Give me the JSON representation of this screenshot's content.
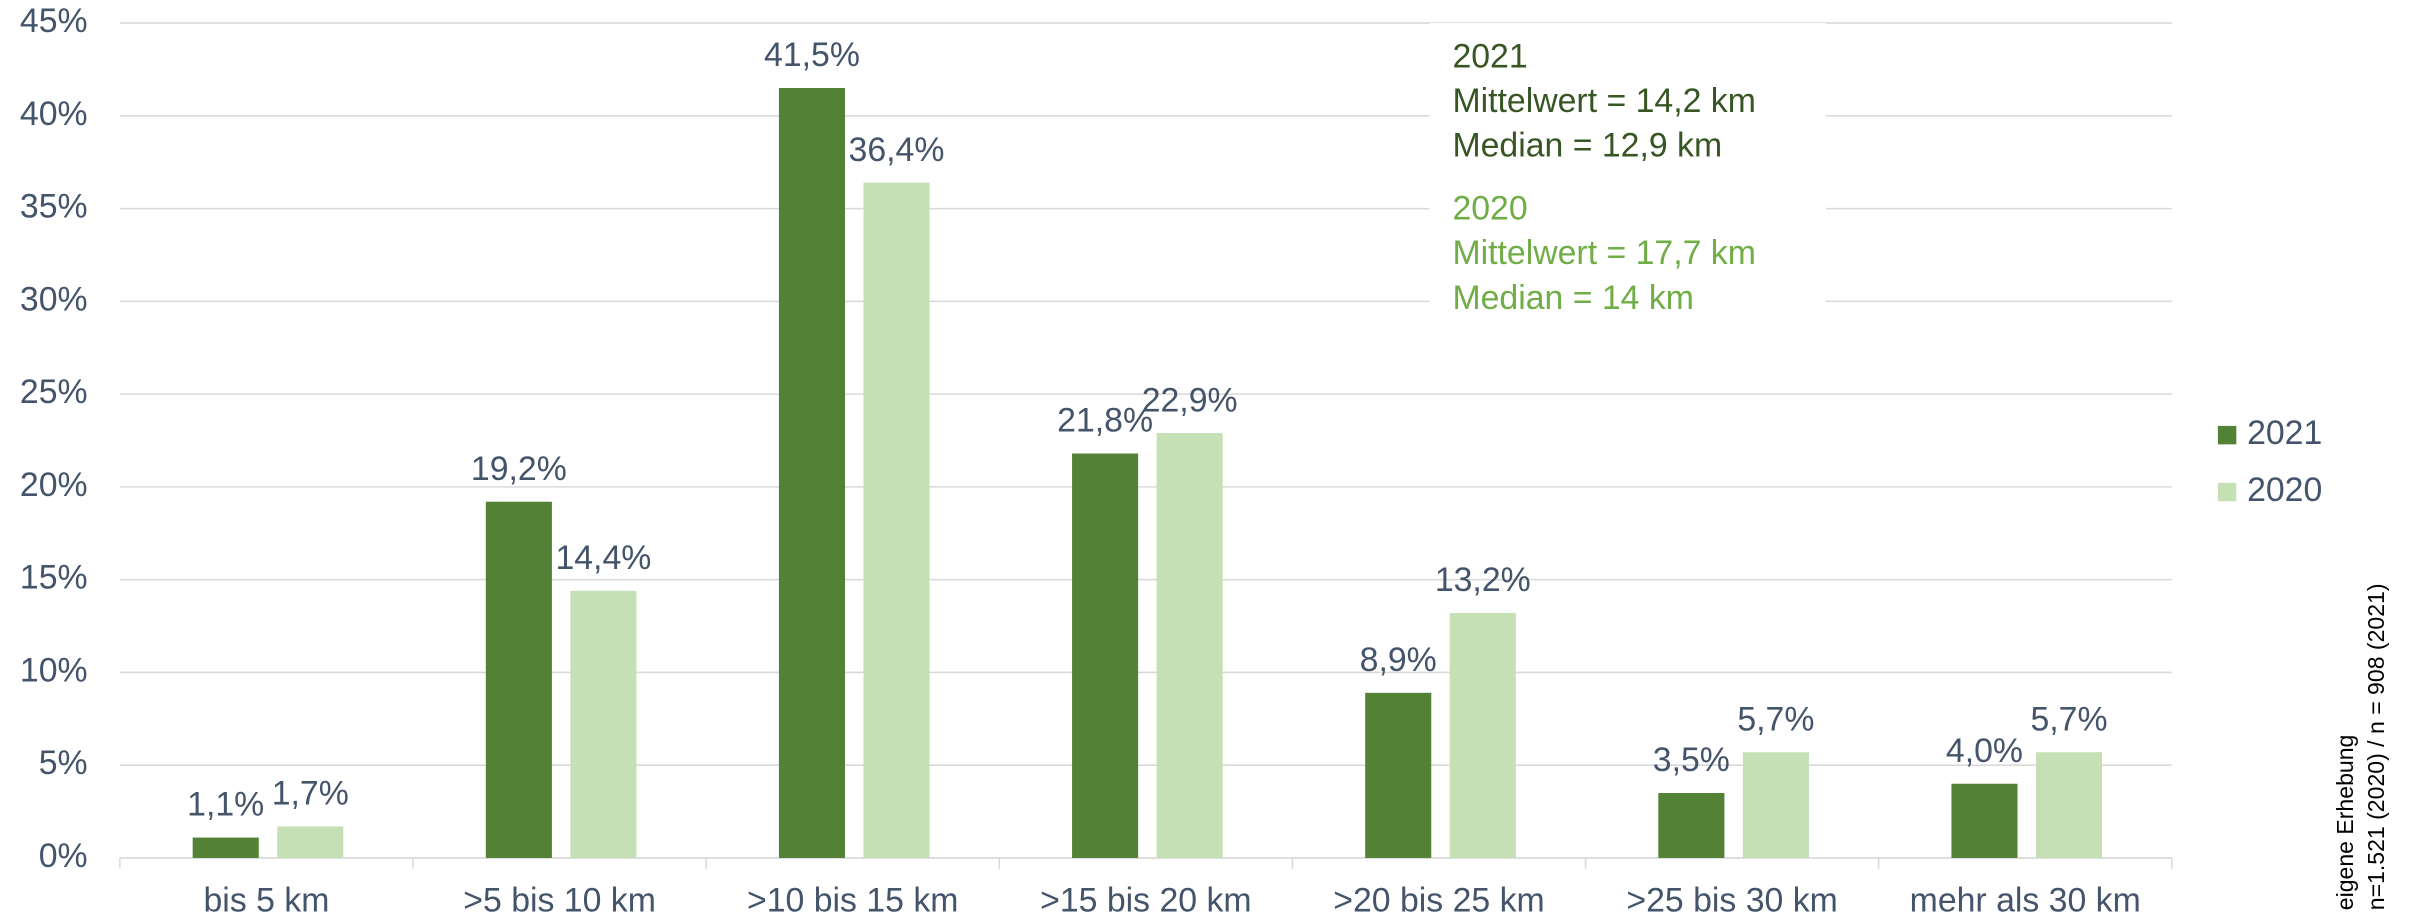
{
  "chart_data": {
    "type": "bar",
    "categories": [
      "bis 5 km",
      ">5 bis 10 km",
      ">10 bis 15 km",
      ">15 bis 20 km",
      ">20 bis 25 km",
      ">25 bis 30 km",
      "mehr als 30 km"
    ],
    "series": [
      {
        "name": "2021",
        "color": "#538135",
        "values": [
          1.1,
          19.2,
          41.5,
          21.8,
          8.9,
          3.5,
          4.0
        ],
        "value_labels": [
          "1,1%",
          "19,2%",
          "41,5%",
          "21,8%",
          "8,9%",
          "3,5%",
          "4,0%"
        ]
      },
      {
        "name": "2020",
        "color": "#c5e0b4",
        "values": [
          1.7,
          14.4,
          36.4,
          22.9,
          13.2,
          5.7,
          5.7
        ],
        "value_labels": [
          "1,7%",
          "14,4%",
          "36,4%",
          "22,9%",
          "13,2%",
          "5,7%",
          "5,7%"
        ]
      }
    ],
    "ylim": [
      0,
      45
    ],
    "yticks": [
      {
        "value": 0,
        "label": "0%"
      },
      {
        "value": 5,
        "label": "5%"
      },
      {
        "value": 10,
        "label": "10%"
      },
      {
        "value": 15,
        "label": "15%"
      },
      {
        "value": 20,
        "label": "20%"
      },
      {
        "value": 25,
        "label": "25%"
      },
      {
        "value": 30,
        "label": "30%"
      },
      {
        "value": 35,
        "label": "35%"
      },
      {
        "value": 40,
        "label": "40%"
      },
      {
        "value": 45,
        "label": "45%"
      }
    ],
    "grid": true,
    "legend": "right",
    "annotations": [
      {
        "color": "#375623",
        "lines": [
          "2021",
          "Mittelwert = 14,2 km",
          "Median = 12,9 km"
        ]
      },
      {
        "color": "#70ad47",
        "lines": [
          "2020",
          "Mittelwert = 17,7 km",
          "Median = 14 km"
        ]
      }
    ],
    "footnote": [
      "eigene Erhebung",
      "n=1.521 (2020) / n = 908 (2021)"
    ]
  }
}
